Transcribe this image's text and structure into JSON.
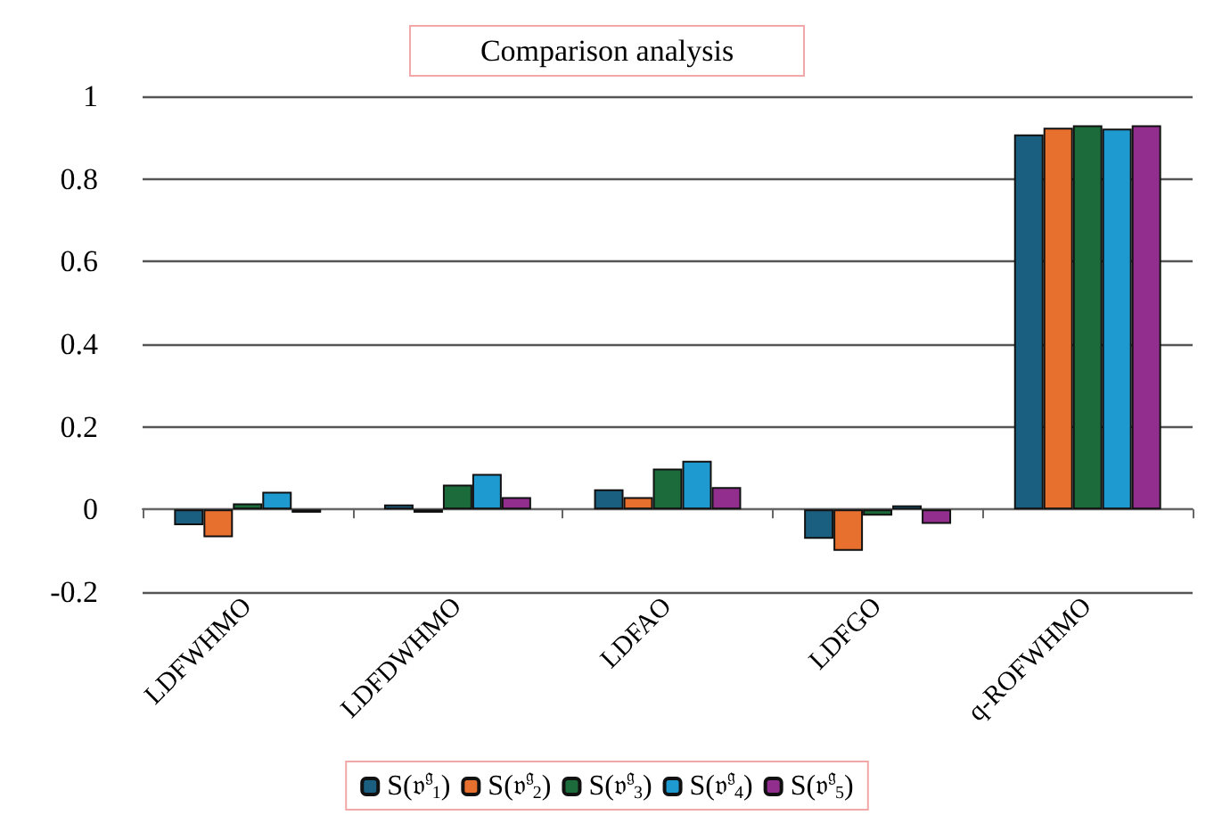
{
  "chart_data": {
    "type": "bar",
    "title": "Comparison analysis",
    "categories": [
      "LDFWHMO",
      "LDFDWHMO",
      "LDFAO",
      "LDFGO",
      "q-ROFWHMO"
    ],
    "series": [
      {
        "name": "S(𝔳$^{𝔤}$$_{1}$)",
        "color": "#1a5f80",
        "values": [
          -0.038,
          0.012,
          0.049,
          -0.071,
          0.908
        ]
      },
      {
        "name": "S(𝔳$^{𝔤}$$_{2}$)",
        "color": "#e8702e",
        "values": [
          -0.067,
          -0.008,
          0.03,
          -0.1,
          0.924
        ]
      },
      {
        "name": "S(𝔳$^{𝔤}$$_{3}$)",
        "color": "#1c6b3a",
        "values": [
          0.015,
          0.06,
          0.099,
          -0.015,
          0.93
        ]
      },
      {
        "name": "S(𝔳$^{𝔤}$$_{4}$)",
        "color": "#1e9ad0",
        "values": [
          0.043,
          0.086,
          0.118,
          0.01,
          0.922
        ]
      },
      {
        "name": "S(𝔳$^{𝔤}$$_{5}$)",
        "color": "#922f8e",
        "values": [
          -0.008,
          0.03,
          0.054,
          -0.035,
          0.93
        ]
      }
    ],
    "ylim": [
      -0.2,
      1
    ],
    "yticks": [
      -0.2,
      0,
      0.2,
      0.4,
      0.6,
      0.8,
      1
    ],
    "grid": "y",
    "legend": "bottom"
  }
}
